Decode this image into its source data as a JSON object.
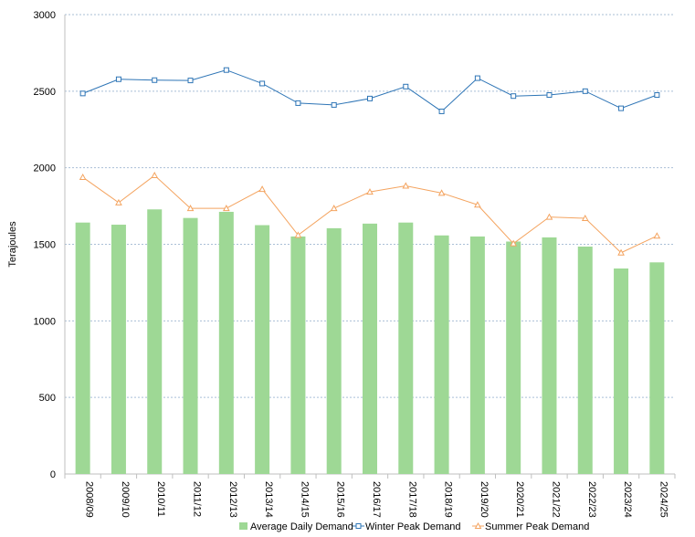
{
  "chart_data": {
    "type": "bar",
    "title": "",
    "xlabel": "",
    "ylabel": "Terajoules",
    "ylim": [
      0,
      3000
    ],
    "yticks": [
      0,
      500,
      1000,
      1500,
      2000,
      2500,
      3000
    ],
    "grid": true,
    "legend_position": "bottom",
    "categories": [
      "2008/09",
      "2009/10",
      "2010/11",
      "2011/12",
      "2012/13",
      "2013/14",
      "2014/15",
      "2015/16",
      "2016/17",
      "2017/18",
      "2018/19",
      "2019/20",
      "2020/21",
      "2021/22",
      "2022/23",
      "2023/24",
      "2024/25"
    ],
    "series": [
      {
        "name": "Average Daily Demand",
        "kind": "bar",
        "color": "#9ed895",
        "values": [
          1642,
          1628,
          1728,
          1672,
          1712,
          1625,
          1551,
          1605,
          1635,
          1642,
          1558,
          1551,
          1518,
          1545,
          1485,
          1342,
          1382
        ]
      },
      {
        "name": "Winter Peak Demand",
        "kind": "line",
        "marker": "square",
        "color": "#2e75b6",
        "values": [
          2485,
          2578,
          2572,
          2570,
          2638,
          2550,
          2422,
          2410,
          2452,
          2530,
          2368,
          2585,
          2468,
          2475,
          2500,
          2388,
          2475
        ]
      },
      {
        "name": "Summer Peak Demand",
        "kind": "line",
        "marker": "triangle",
        "color": "#f4a460",
        "values": [
          1938,
          1772,
          1950,
          1735,
          1735,
          1860,
          1560,
          1735,
          1842,
          1882,
          1835,
          1758,
          1505,
          1678,
          1670,
          1445,
          1555
        ]
      }
    ]
  }
}
